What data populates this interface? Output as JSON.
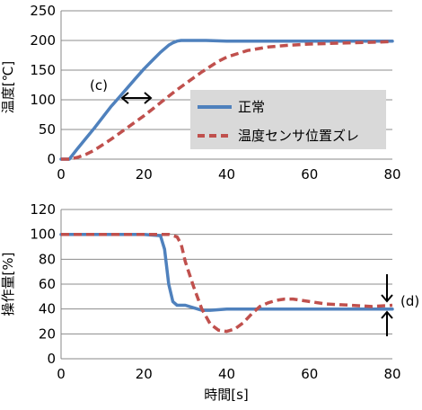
{
  "chart_data": [
    {
      "type": "line",
      "ylabel": "温度[℃]",
      "xlabel": "",
      "xlim": [
        0,
        80
      ],
      "ylim": [
        0,
        250
      ],
      "xticks": [
        0,
        20,
        40,
        60,
        80
      ],
      "yticks": [
        0,
        50,
        100,
        150,
        200,
        250
      ],
      "grid": "horizontal",
      "legend": "center-right",
      "annotation": "(c)",
      "series": [
        {
          "name": "正常",
          "color": "#4F81BD",
          "style": "solid",
          "x": [
            0,
            2,
            4,
            6,
            8,
            10,
            12,
            14,
            16,
            18,
            20,
            22,
            24,
            26,
            27,
            28,
            29,
            30,
            32,
            35,
            40,
            50,
            60,
            70,
            80
          ],
          "y": [
            0,
            0,
            18,
            35,
            52,
            70,
            88,
            104,
            120,
            136,
            152,
            166,
            180,
            192,
            196,
            199,
            200,
            200,
            200,
            200,
            199,
            199,
            199,
            199,
            199
          ]
        },
        {
          "name": "温度センサ位置ズレ",
          "color": "#C0504D",
          "style": "dashed",
          "x": [
            0,
            2,
            4,
            6,
            8,
            10,
            12,
            14,
            16,
            18,
            20,
            22,
            24,
            26,
            28,
            30,
            32,
            34,
            36,
            38,
            40,
            45,
            50,
            55,
            60,
            65,
            70,
            75,
            80
          ],
          "y": [
            0,
            0,
            3,
            8,
            15,
            24,
            33,
            43,
            53,
            63,
            73,
            84,
            95,
            106,
            117,
            127,
            137,
            147,
            156,
            165,
            172,
            183,
            189,
            192,
            194,
            195,
            196,
            197,
            198
          ]
        }
      ]
    },
    {
      "type": "line",
      "ylabel": "操作量[%]",
      "xlabel": "時間[s]",
      "xlim": [
        0,
        80
      ],
      "ylim": [
        0,
        120
      ],
      "xticks": [
        0,
        20,
        40,
        60,
        80
      ],
      "yticks": [
        0,
        20,
        40,
        60,
        80,
        100,
        120
      ],
      "grid": "horizontal",
      "annotation": "(d)",
      "series": [
        {
          "name": "正常",
          "color": "#4F81BD",
          "style": "solid",
          "x": [
            0,
            10,
            20,
            24,
            25,
            26,
            27,
            28,
            30,
            32,
            34,
            36,
            40,
            50,
            60,
            70,
            80
          ],
          "y": [
            100,
            100,
            100,
            99,
            88,
            60,
            46,
            43,
            43,
            41,
            39,
            39,
            40,
            40,
            40,
            40,
            40
          ]
        },
        {
          "name": "温度センサ位置ズレ",
          "color": "#C0504D",
          "style": "dashed",
          "x": [
            0,
            10,
            20,
            26,
            28,
            29,
            30,
            32,
            34,
            36,
            38,
            40,
            42,
            44,
            46,
            48,
            50,
            52,
            54,
            56,
            58,
            60,
            64,
            70,
            75,
            80
          ],
          "y": [
            100,
            100,
            100,
            100,
            98,
            92,
            78,
            58,
            40,
            28,
            23,
            22,
            24,
            29,
            36,
            42,
            45,
            47,
            48,
            48,
            47,
            46,
            44,
            43,
            42,
            43
          ]
        }
      ]
    }
  ]
}
